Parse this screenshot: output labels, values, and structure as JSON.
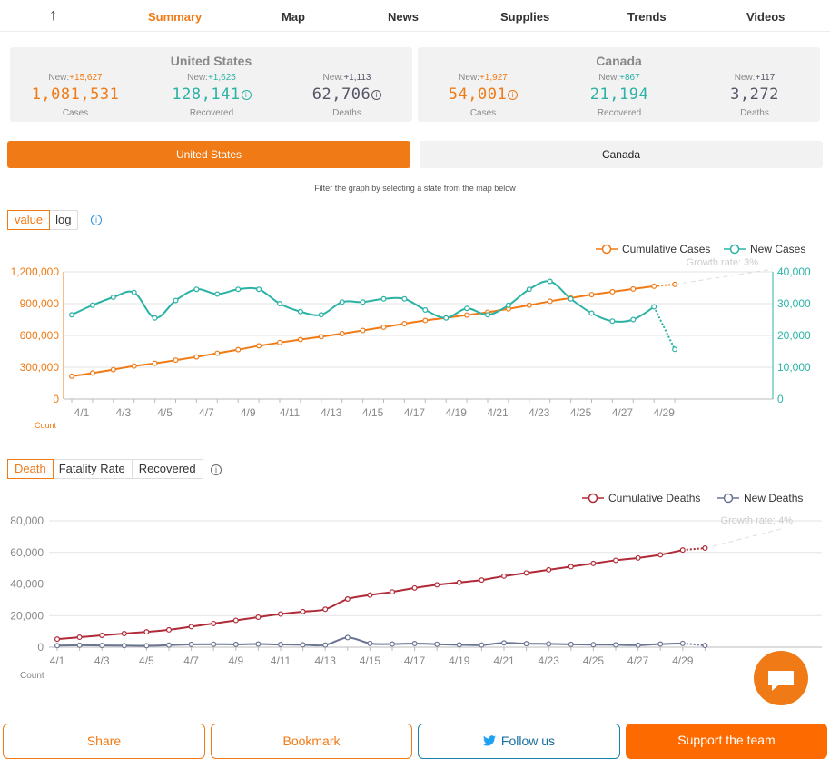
{
  "nav": {
    "items": [
      "Summary",
      "Map",
      "News",
      "Supplies",
      "Trends",
      "Videos"
    ],
    "active": "Summary"
  },
  "panels": {
    "us": {
      "title": "United States",
      "cases": {
        "new_prefix": "New:",
        "new": "+15,627",
        "value": "1,081,531",
        "label": "Cases"
      },
      "recovered": {
        "new_prefix": "New:",
        "new": "+1,625",
        "value": "128,141",
        "label": "Recovered"
      },
      "deaths": {
        "new_prefix": "New:",
        "new": "+1,113",
        "value": "62,706",
        "label": "Deaths"
      }
    },
    "ca": {
      "title": "Canada",
      "cases": {
        "new_prefix": "New:",
        "new": "+1,927",
        "value": "54,001",
        "label": "Cases"
      },
      "recovered": {
        "new_prefix": "New:",
        "new": "+867",
        "value": "21,194",
        "label": "Recovered"
      },
      "deaths": {
        "new_prefix": "New:",
        "new": "+117",
        "value": "3,272",
        "label": "Deaths"
      }
    }
  },
  "country_tabs": {
    "us": "United States",
    "ca": "Canada",
    "active": "United States"
  },
  "hint": "Filter the graph by selecting a state from the map below",
  "cases_controls": {
    "value": "value",
    "log": "log",
    "active": "value"
  },
  "death_controls": {
    "death": "Death",
    "fatality": "Fatality Rate",
    "recovered": "Recovered",
    "active": "Death"
  },
  "colors": {
    "accent": "#f07a15",
    "teal": "#2ab3a5",
    "deaths": "#b02a37",
    "new_deaths": "#6b7593",
    "twitter": "#1da1f2"
  },
  "chart_data": [
    {
      "type": "line",
      "x": [
        "4/1",
        "4/2",
        "4/3",
        "4/4",
        "4/5",
        "4/6",
        "4/7",
        "4/8",
        "4/9",
        "4/10",
        "4/11",
        "4/12",
        "4/13",
        "4/14",
        "4/15",
        "4/16",
        "4/17",
        "4/18",
        "4/19",
        "4/20",
        "4/21",
        "4/22",
        "4/23",
        "4/24",
        "4/25",
        "4/26",
        "4/27",
        "4/28",
        "4/29",
        "4/30"
      ],
      "x_ticks": [
        "4/1",
        "4/3",
        "4/5",
        "4/7",
        "4/9",
        "4/11",
        "4/13",
        "4/15",
        "4/17",
        "4/19",
        "4/21",
        "4/23",
        "4/25",
        "4/27",
        "4/29"
      ],
      "series": [
        {
          "name": "Cumulative Cases",
          "axis": "left",
          "values": [
            215000,
            245000,
            278000,
            312000,
            337000,
            367000,
            398000,
            432000,
            466000,
            502000,
            533000,
            561000,
            588000,
            617000,
            647000,
            678000,
            711000,
            741000,
            766000,
            792000,
            819000,
            851000,
            885000,
            922000,
            953000,
            985000,
            1012000,
            1038000,
            1064000,
            1081531
          ],
          "projected_from_index": 28
        },
        {
          "name": "New Cases",
          "axis": "right",
          "values": [
            26500,
            29500,
            32000,
            33500,
            25500,
            31000,
            34500,
            33000,
            34500,
            34500,
            30000,
            27500,
            26500,
            30500,
            30500,
            31500,
            31500,
            28000,
            25500,
            28500,
            26500,
            29500,
            34500,
            37000,
            31500,
            27000,
            24500,
            25000,
            29000,
            15627
          ],
          "projected_from_index": 28
        }
      ],
      "ylim_left": [
        0,
        1200000
      ],
      "yticks_left": [
        "0",
        "300,000",
        "600,000",
        "900,000",
        "1,200,000"
      ],
      "ylim_right": [
        0,
        40000
      ],
      "yticks_right": [
        "0",
        "10,000",
        "20,000",
        "30,000",
        "40,000"
      ],
      "ylabel": "Count",
      "annotation": "Growth rate: 3%",
      "legend": "top-right",
      "grid": true
    },
    {
      "type": "line",
      "x": [
        "4/1",
        "4/2",
        "4/3",
        "4/4",
        "4/5",
        "4/6",
        "4/7",
        "4/8",
        "4/9",
        "4/10",
        "4/11",
        "4/12",
        "4/13",
        "4/14",
        "4/15",
        "4/16",
        "4/17",
        "4/18",
        "4/19",
        "4/20",
        "4/21",
        "4/22",
        "4/23",
        "4/24",
        "4/25",
        "4/26",
        "4/27",
        "4/28",
        "4/29",
        "4/30"
      ],
      "x_ticks": [
        "4/1",
        "4/3",
        "4/5",
        "4/7",
        "4/9",
        "4/11",
        "4/13",
        "4/15",
        "4/17",
        "4/19",
        "4/21",
        "4/23",
        "4/25",
        "4/27",
        "4/29"
      ],
      "series": [
        {
          "name": "Cumulative Deaths",
          "values": [
            5100,
            6300,
            7500,
            8600,
            9700,
            11000,
            13000,
            15000,
            17000,
            19000,
            21000,
            22500,
            24000,
            30500,
            33000,
            35000,
            37500,
            39500,
            41000,
            42500,
            45000,
            47000,
            49000,
            51000,
            53000,
            55000,
            56500,
            58500,
            61500,
            62706
          ],
          "projected_from_index": 28
        },
        {
          "name": "New Deaths",
          "values": [
            1000,
            1200,
            1100,
            1000,
            900,
            1300,
            1800,
            1900,
            1800,
            2000,
            1700,
            1500,
            1400,
            6100,
            2400,
            2000,
            2300,
            1900,
            1500,
            1400,
            2700,
            2200,
            2100,
            1800,
            1600,
            1500,
            1300,
            2000,
            2400,
            1113
          ],
          "projected_from_index": 28
        }
      ],
      "ylim": [
        0,
        80000
      ],
      "yticks": [
        "0",
        "20,000",
        "40,000",
        "60,000",
        "80,000"
      ],
      "ylabel": "Count",
      "annotation": "Growth rate: 4%",
      "legend": "top-right",
      "grid": true
    }
  ],
  "buttons": {
    "share": "Share",
    "bookmark": "Bookmark",
    "follow": "Follow us",
    "support": "Support the team"
  }
}
